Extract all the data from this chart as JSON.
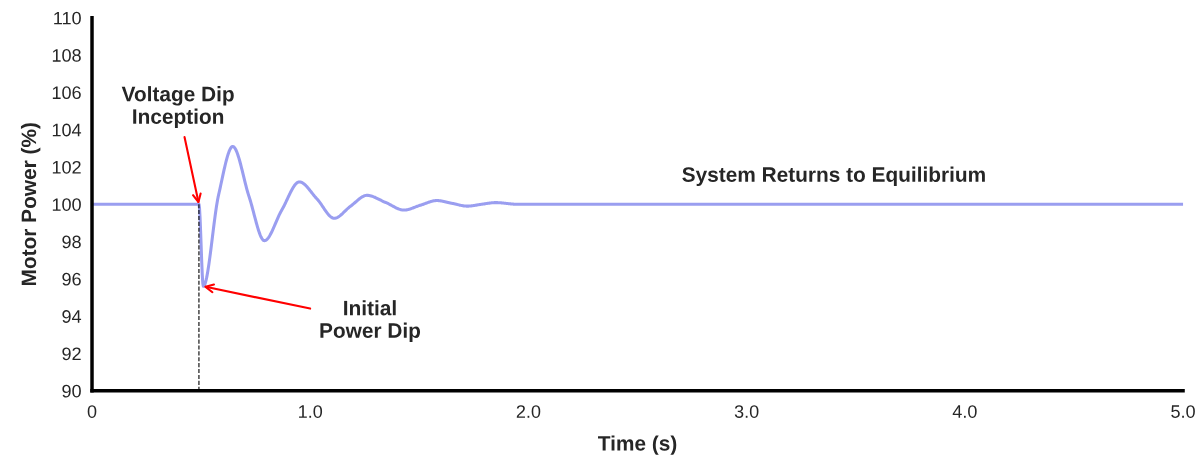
{
  "chart_data": {
    "type": "line",
    "xlabel": "Time (s)",
    "ylabel": "Motor Power (%)",
    "xlim": [
      0,
      5.0
    ],
    "ylim": [
      90,
      110
    ],
    "xticks": [
      0,
      {
        "value": 1,
        "label": "1.0"
      },
      {
        "value": 2,
        "label": "2.0"
      },
      {
        "value": 3,
        "label": "3.0"
      },
      {
        "value": 4,
        "label": "4.0"
      },
      {
        "value": 5,
        "label": "5.0"
      }
    ],
    "yticks": [
      90,
      92,
      94,
      96,
      98,
      100,
      102,
      104,
      106,
      108,
      110
    ],
    "grid": false,
    "legend": false,
    "marker": "none",
    "line_style": "solid",
    "series": [
      {
        "color": "#9a9ef0",
        "x": [
          0,
          0.49,
          0.51,
          0.58,
          0.645,
          0.72,
          0.79,
          0.87,
          0.95,
          1.03,
          1.11,
          1.185,
          1.26,
          1.345,
          1.43,
          1.505,
          1.58,
          1.65,
          1.72,
          1.785,
          1.85,
          1.95,
          2.1,
          5.0
        ],
        "values": [
          100,
          100,
          95.6,
          100.5,
          103.1,
          100.4,
          98.05,
          99.7,
          101.2,
          100.3,
          99.25,
          99.9,
          100.48,
          100.1,
          99.69,
          99.95,
          100.2,
          100.05,
          99.9,
          100,
          100.09,
          100,
          100,
          100
        ]
      }
    ],
    "ref_lines": [
      {
        "axis": "x",
        "value": 0.49,
        "color": "#000000",
        "line_style": "dashed"
      }
    ],
    "annotations": [
      {
        "text": "Voltage Dip\nInception",
        "x": 0.49,
        "y": 100
      },
      {
        "text": "Initial\nPower Dip",
        "x": 0.51,
        "y": 95.6
      },
      "System Returns to Equilibrium"
    ]
  }
}
